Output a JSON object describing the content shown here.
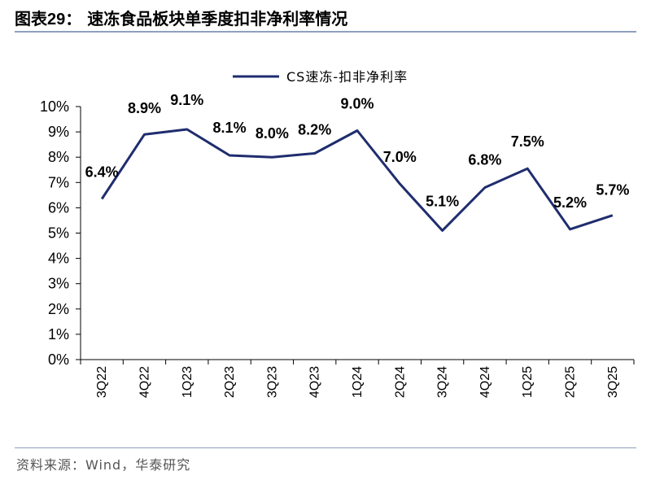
{
  "header": {
    "figure_label": "图表",
    "figure_number": "29",
    "colon": "：",
    "title_text": "速冻食品板块单季度扣非净利率情况"
  },
  "source": "资料来源：Wind，华泰研究",
  "colors": {
    "line": "#1f2d6e",
    "rule": "#8ea0bd",
    "axis": "#000000"
  },
  "chart_data": {
    "type": "line",
    "categories": [
      "3Q22",
      "4Q22",
      "1Q23",
      "2Q23",
      "3Q23",
      "4Q23",
      "1Q24",
      "2Q24",
      "3Q24",
      "4Q24",
      "1Q25",
      "2Q25",
      "3Q25"
    ],
    "series": [
      {
        "name": "CS速冻-扣非净利率",
        "values": [
          6.35,
          8.9,
          9.1,
          8.07,
          8.0,
          8.15,
          9.05,
          6.95,
          5.1,
          6.8,
          7.55,
          5.15,
          5.7
        ],
        "labels": [
          "6.4%",
          "8.9%",
          "9.1%",
          "8.1%",
          "8.0%",
          "8.2%",
          "9.0%",
          "7.0%",
          "5.1%",
          "6.8%",
          "7.5%",
          "5.2%",
          "5.7%"
        ]
      }
    ],
    "y_ticks": [
      "0%",
      "1%",
      "2%",
      "3%",
      "4%",
      "5%",
      "6%",
      "7%",
      "8%",
      "9%",
      "10%"
    ],
    "ylim": [
      0,
      10
    ],
    "legend_position": "top-center",
    "grid": false
  }
}
